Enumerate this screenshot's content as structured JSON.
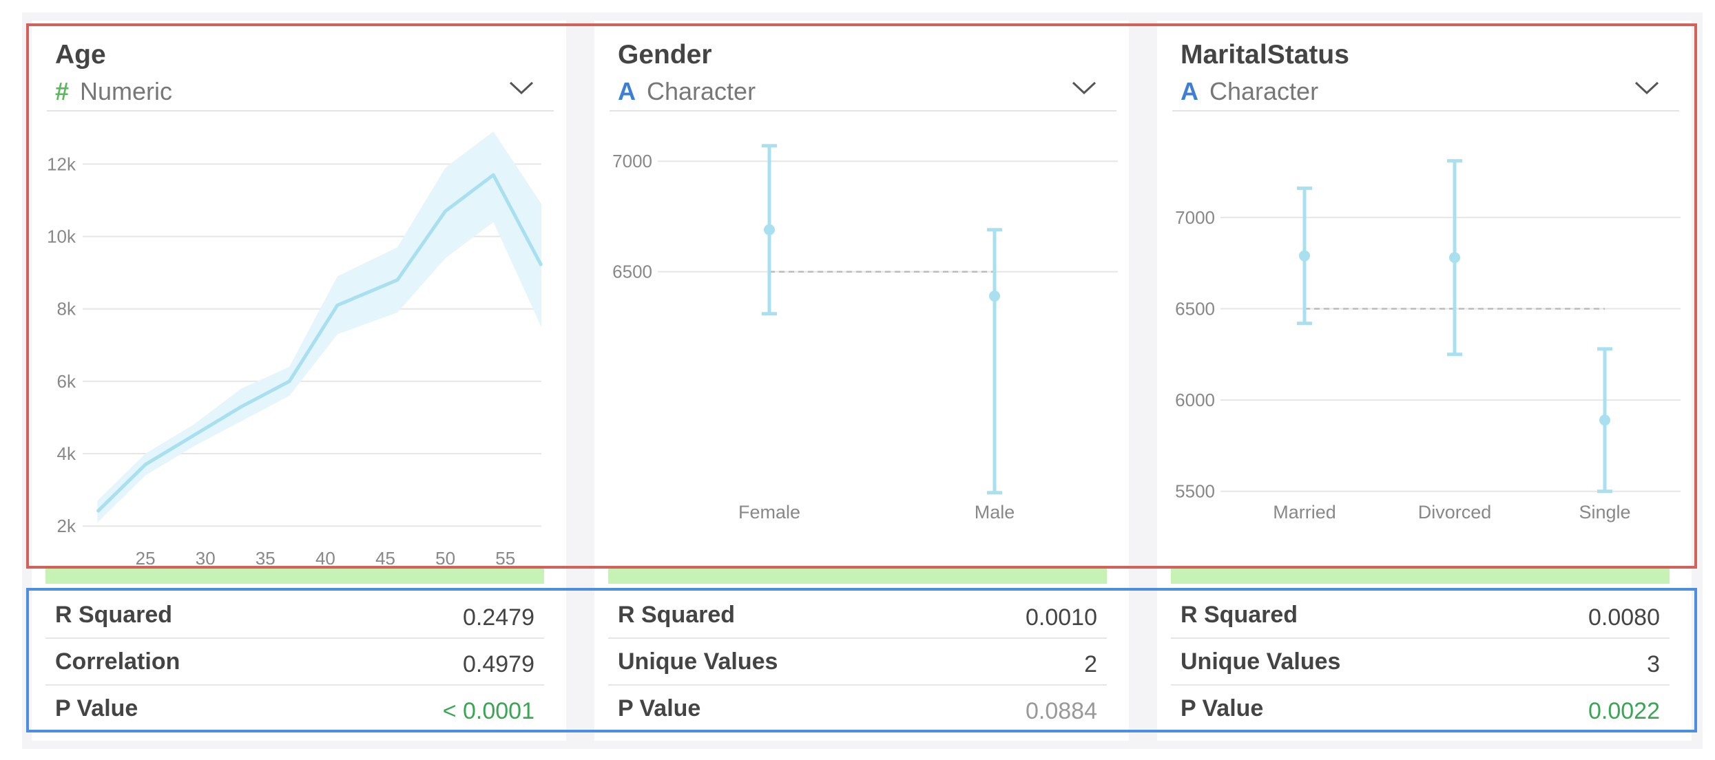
{
  "cards": [
    {
      "title": "Age",
      "type_glyph": "#",
      "type_label": "Numeric",
      "stats": [
        {
          "label": "R Squared",
          "value": "0.2479",
          "status": "normal"
        },
        {
          "label": "Correlation",
          "value": "0.4979",
          "status": "normal"
        },
        {
          "label": "P Value",
          "value": "< 0.0001",
          "status": "significant"
        }
      ]
    },
    {
      "title": "Gender",
      "type_glyph": "A",
      "type_label": "Character",
      "stats": [
        {
          "label": "R Squared",
          "value": "0.0010",
          "status": "normal"
        },
        {
          "label": "Unique Values",
          "value": "2",
          "status": "normal"
        },
        {
          "label": "P Value",
          "value": "0.0884",
          "status": "not-significant"
        }
      ]
    },
    {
      "title": "MaritalStatus",
      "type_glyph": "A",
      "type_label": "Character",
      "stats": [
        {
          "label": "R Squared",
          "value": "0.0080",
          "status": "normal"
        },
        {
          "label": "Unique Values",
          "value": "3",
          "status": "normal"
        },
        {
          "label": "P Value",
          "value": "0.0022",
          "status": "significant"
        }
      ]
    }
  ],
  "colors": {
    "line": "#a8e0f0",
    "band": "#e4f5fb",
    "numeric_icon": "#5cb85c",
    "character_icon": "#3d7fd6",
    "significant": "#3aa655",
    "not_significant": "#999999",
    "highlight_bar": "#c6f2b6",
    "frame_charts": "#d4605a",
    "frame_stats": "#4c8ee4"
  },
  "icons": {
    "dropdown": "chevron-down-icon",
    "numeric": "hash-icon",
    "character": "letter-a-icon"
  },
  "chart_data": [
    {
      "type": "line",
      "x": [
        21,
        25,
        29,
        33,
        37,
        41,
        46,
        50,
        54,
        58
      ],
      "y": [
        2400,
        3700,
        4500,
        5300,
        6000,
        8100,
        8800,
        10700,
        11700,
        9200
      ],
      "y_upper": [
        2700,
        4000,
        4800,
        5800,
        6400,
        8900,
        9700,
        11900,
        12900,
        10900
      ],
      "y_lower": [
        2100,
        3400,
        4200,
        4900,
        5600,
        7300,
        7900,
        9400,
        10400,
        7500
      ],
      "x_ticks": [
        25,
        30,
        35,
        40,
        45,
        50,
        55
      ],
      "y_ticks": [
        2000,
        4000,
        6000,
        8000,
        10000,
        12000
      ],
      "y_tick_labels": [
        "2k",
        "4k",
        "6k",
        "8k",
        "10k",
        "12k"
      ],
      "xlim": [
        20,
        58
      ],
      "ylim": [
        1700,
        13300
      ],
      "grid": true
    },
    {
      "type": "scatter",
      "categories": [
        "Female",
        "Male"
      ],
      "values": [
        6690,
        6390
      ],
      "upper": [
        7070,
        6690
      ],
      "lower": [
        6310,
        5500
      ],
      "reference": 6500,
      "y_ticks": [
        6500,
        7000
      ],
      "ylim": [
        5300,
        7200
      ],
      "grid": true
    },
    {
      "type": "scatter",
      "categories": [
        "Married",
        "Divorced",
        "Single"
      ],
      "values": [
        6790,
        6780,
        5890
      ],
      "upper": [
        7160,
        7310,
        6280
      ],
      "lower": [
        6420,
        6250,
        5500
      ],
      "reference": 6500,
      "y_ticks": [
        5500,
        6000,
        6500,
        7000
      ],
      "ylim": [
        5250,
        7550
      ],
      "grid": true
    }
  ]
}
